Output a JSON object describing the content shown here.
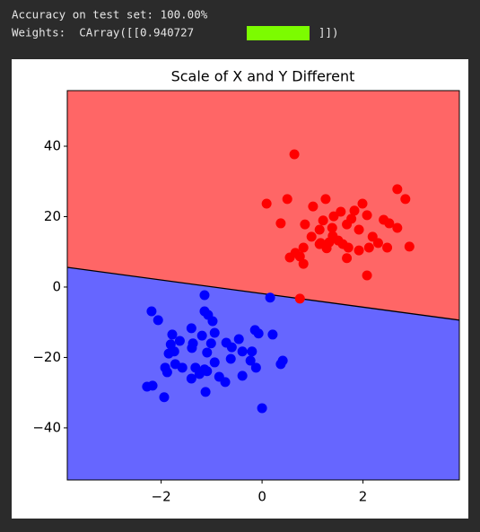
{
  "output_lines": {
    "accuracy": "Accuracy on test set: 100.00%",
    "weights_prefix": "Weights:  CArray([[0.940727",
    "weights_suffix": "]])"
  },
  "chart_data": {
    "type": "scatter",
    "title": "Scale of X and Y Different",
    "xlim": [
      -3.86,
      3.91
    ],
    "ylim": [
      -54.8,
      55.8
    ],
    "xticks": [
      {
        "value": -2,
        "label": "−2"
      },
      0,
      2
    ],
    "yticks": [
      {
        "value": -40,
        "label": "−40"
      },
      {
        "value": -20,
        "label": "−20"
      },
      0,
      20,
      40
    ],
    "regions": {
      "upper_color": "#ff6666",
      "lower_color": "#6666ff"
    },
    "boundary": {
      "x": [
        -3.86,
        3.91
      ],
      "y": [
        5.6,
        -9.4
      ]
    },
    "series": [
      {
        "color": "#ff0000",
        "x": [
          0.64,
          2.68,
          2.84,
          0.09,
          0.5,
          1.01,
          1.26,
          1.99,
          1.56,
          1.83,
          2.08,
          1.77,
          1.42,
          1.21,
          0.85,
          0.37,
          2.41,
          2.52,
          2.68,
          1.14,
          1.39,
          1.68,
          1.92,
          1.4,
          0.98,
          2.19,
          1.14,
          1.6,
          1.51,
          1.71,
          2.3,
          2.48,
          2.92,
          0.82,
          0.66,
          0.55,
          0.75,
          0.82,
          1.68,
          1.92,
          2.12,
          1.28,
          2.08,
          0.75,
          1.16,
          1.33
        ],
        "y": [
          37.7,
          27.8,
          25,
          23.7,
          25,
          22.9,
          25,
          23.7,
          21.4,
          21.7,
          20.4,
          19.4,
          20.1,
          18.9,
          17.8,
          18.1,
          19.1,
          18.1,
          16.8,
          16.3,
          16.8,
          17.8,
          16.3,
          14.5,
          14.3,
          14.3,
          12.2,
          12.2,
          13.2,
          11.2,
          12.5,
          11.2,
          11.5,
          11.2,
          9.7,
          8.4,
          8.7,
          6.6,
          8.2,
          10.4,
          11.2,
          11,
          3.3,
          -3.3,
          12.5,
          12.7
        ]
      },
      {
        "color": "#0000ff",
        "x": [
          -1.14,
          -2.19,
          -2.06,
          -1.07,
          -1.14,
          0.16,
          -1.78,
          -1.4,
          -0.98,
          -1.19,
          -0.94,
          -1.63,
          -1.37,
          -1.81,
          -0.71,
          -0.46,
          -0.14,
          -0.07,
          0.21,
          -0.6,
          -0.39,
          -0.2,
          -1.09,
          -1.39,
          -1.74,
          -1.85,
          -1.92,
          -1.58,
          -1.72,
          -0.94,
          -0.62,
          -0.23,
          -0.12,
          0.37,
          0.41,
          -1.88,
          -1.32,
          -1.24,
          -1.09,
          -0.85,
          -0.73,
          -0.39,
          -1.4,
          -2.28,
          -2.17,
          -1.94,
          -1.12,
          0,
          -1.14,
          -1.01
        ],
        "y": [
          -6.9,
          -6.9,
          -9.4,
          -7.9,
          -2.3,
          -3,
          -13.5,
          -11.7,
          -9.7,
          -13.8,
          -13,
          -15.3,
          -16,
          -16.3,
          -15.8,
          -14.8,
          -12.2,
          -13.2,
          -13.5,
          -17.1,
          -18.3,
          -18.3,
          -18.6,
          -17.3,
          -18.3,
          -18.9,
          -22.9,
          -22.9,
          -21.9,
          -21.4,
          -20.4,
          -20.9,
          -22.9,
          -21.9,
          -20.9,
          -24.2,
          -22.9,
          -24.7,
          -23.9,
          -25.5,
          -27,
          -25.2,
          -26,
          -28.3,
          -28,
          -31.3,
          -29.8,
          -34.4,
          -23.4,
          -16
        ]
      }
    ]
  }
}
